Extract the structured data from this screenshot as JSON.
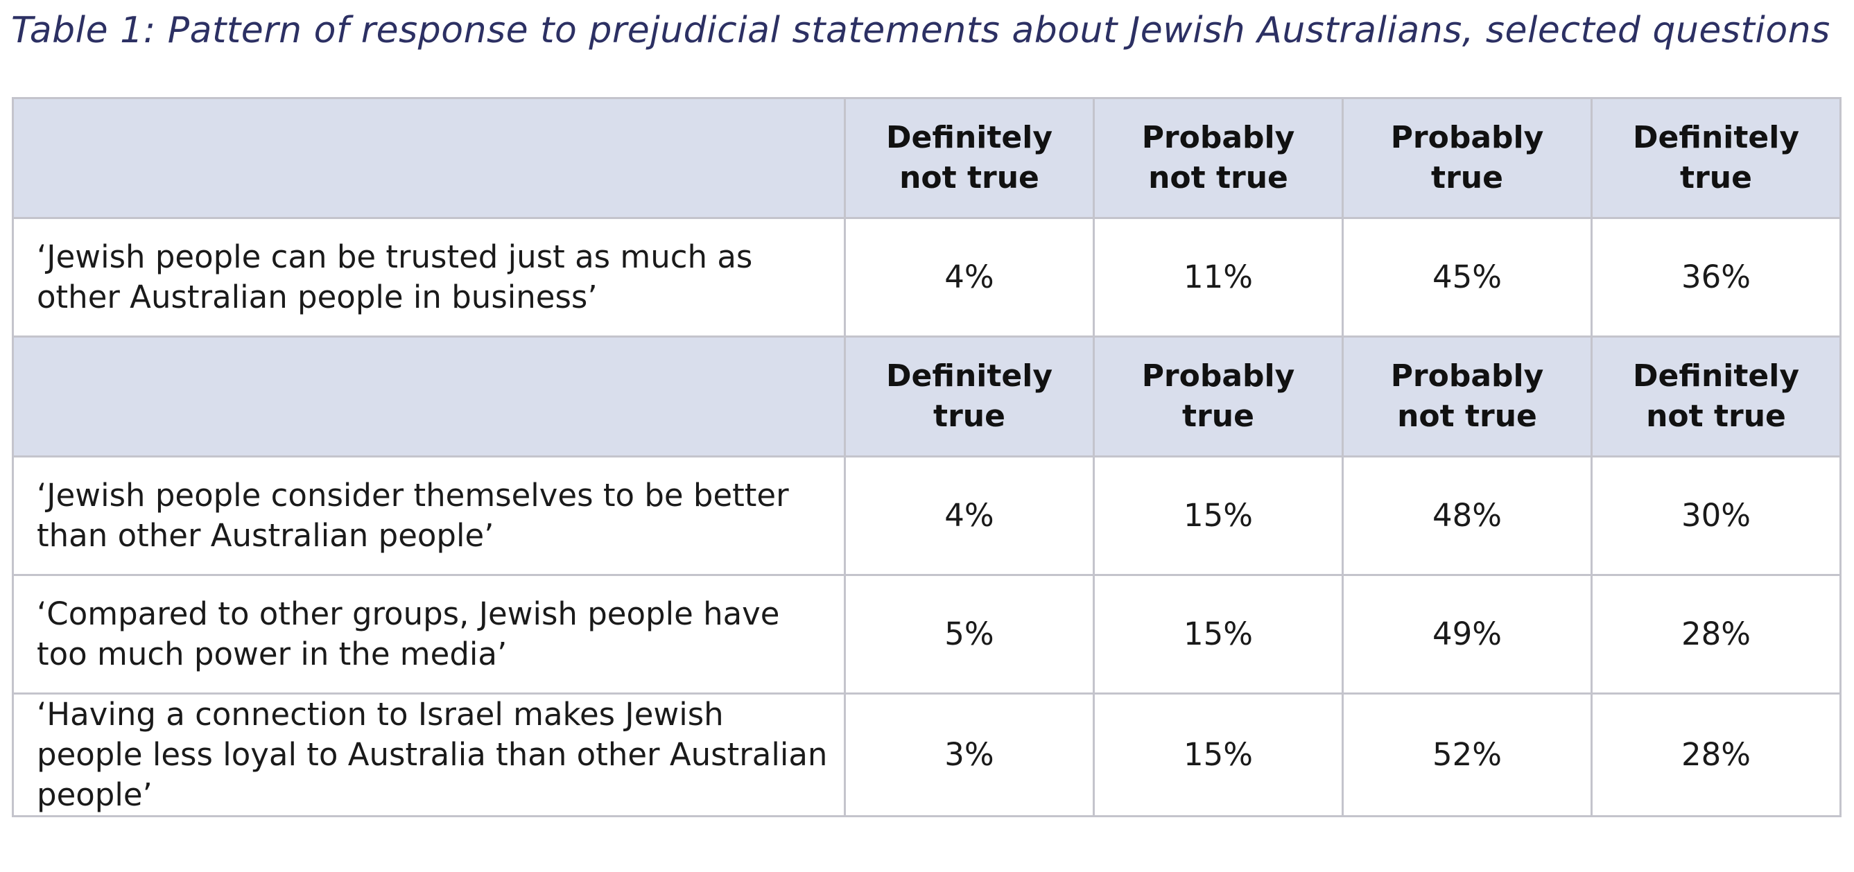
{
  "caption": "Table 1: Pattern of response to prejudicial statements about Jewish Australians, selected questions",
  "sections": [
    {
      "headers": [
        "Definitely not true",
        "Probably not true",
        "Probably true",
        "Definitely true"
      ],
      "rows": [
        {
          "statement": "‘Jewish people can be trusted just as much as other Australian people in business’",
          "values": [
            "4%",
            "11%",
            "45%",
            "36%"
          ]
        }
      ]
    },
    {
      "headers": [
        "Definitely true",
        "Probably true",
        "Probably not true",
        "Definitely not true"
      ],
      "rows": [
        {
          "statement": "‘Jewish people consider themselves to be better than other Australian people’",
          "values": [
            "4%",
            "15%",
            "48%",
            "30%"
          ]
        },
        {
          "statement": "‘Compared to other groups, Jewish people have too much power in the media’",
          "values": [
            "5%",
            "15%",
            "49%",
            "28%"
          ]
        },
        {
          "statement": "‘Having a connection to Israel makes Jewish people less loyal to Australia than other Australian people’",
          "values": [
            "3%",
            "15%",
            "52%",
            "28%"
          ]
        }
      ]
    }
  ],
  "colors": {
    "caption_text": "#2c3063",
    "header_background": "#d9deec",
    "grid_lines": "#c4c4cc"
  }
}
